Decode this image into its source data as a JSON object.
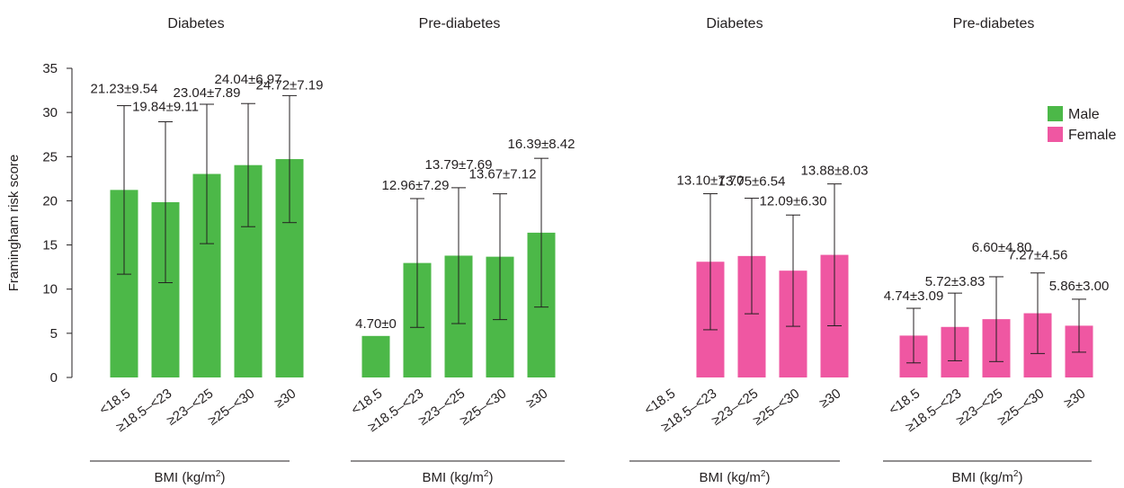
{
  "chart_data": {
    "type": "bar",
    "ylabel": "Framingham risk score",
    "ylim": [
      0,
      35
    ],
    "yticks": [
      0,
      5,
      10,
      15,
      20,
      25,
      30,
      35
    ],
    "legend": {
      "placement": "right",
      "entries": [
        {
          "name": "Male",
          "color": "#4cb848"
        },
        {
          "name": "Female",
          "color": "#ef57a2"
        }
      ]
    },
    "panels": [
      {
        "title": "Diabetes",
        "series": "Male",
        "color": "#4cb848",
        "xlabel": "BMI (kg/m",
        "xlabel_sup": "2",
        "xlabel_end": ")",
        "categories": [
          "<18.5",
          "≥18.5–<23",
          "≥23–<25",
          "≥25–<30",
          "≥30"
        ],
        "values": [
          21.23,
          19.84,
          23.04,
          24.04,
          24.72
        ],
        "errors": [
          9.54,
          9.11,
          7.89,
          6.97,
          7.19
        ],
        "labels": [
          "21.23±9.54",
          "19.84±9.11",
          "23.04±7.89",
          "24.04±6.97",
          "24.72±7.19"
        ]
      },
      {
        "title": "Pre-diabetes",
        "series": "Male",
        "color": "#4cb848",
        "xlabel": "BMI (kg/m",
        "xlabel_sup": "2",
        "xlabel_end": ")",
        "categories": [
          "<18.5",
          "≥18.5–<23",
          "≥23–<25",
          "≥25–<30",
          "≥30"
        ],
        "values": [
          4.7,
          12.96,
          13.79,
          13.67,
          16.39
        ],
        "errors": [
          0,
          7.29,
          7.69,
          7.12,
          8.42
        ],
        "labels": [
          "4.70±0",
          "12.96±7.29",
          "13.79±7.69",
          "13.67±7.12",
          "16.39±8.42"
        ]
      },
      {
        "title": "Diabetes",
        "series": "Female",
        "color": "#ef57a2",
        "xlabel": "BMI (kg/m",
        "xlabel_sup": "2",
        "xlabel_end": ")",
        "categories": [
          "<18.5",
          "≥18.5–<23",
          "≥23–<25",
          "≥25–<30",
          "≥30"
        ],
        "values": [
          null,
          13.1,
          13.75,
          12.09,
          13.88
        ],
        "errors": [
          null,
          7.7,
          6.54,
          6.3,
          8.03
        ],
        "labels": [
          "",
          "13.10±7.70",
          "13.75±6.54",
          "12.09±6.30",
          "13.88±8.03"
        ]
      },
      {
        "title": "Pre-diabetes",
        "series": "Female",
        "color": "#ef57a2",
        "xlabel": "BMI (kg/m",
        "xlabel_sup": "2",
        "xlabel_end": ")",
        "categories": [
          "<18.5",
          "≥18.5–<23",
          "≥23–<25",
          "≥25–<30",
          "≥30"
        ],
        "values": [
          4.74,
          5.72,
          6.6,
          7.27,
          5.86
        ],
        "errors": [
          3.09,
          3.83,
          4.8,
          4.56,
          3.0
        ],
        "labels": [
          "4.74±3.09",
          "5.72±3.83",
          "6.60±4.80",
          "7.27±4.56",
          "5.86±3.00"
        ]
      }
    ]
  }
}
